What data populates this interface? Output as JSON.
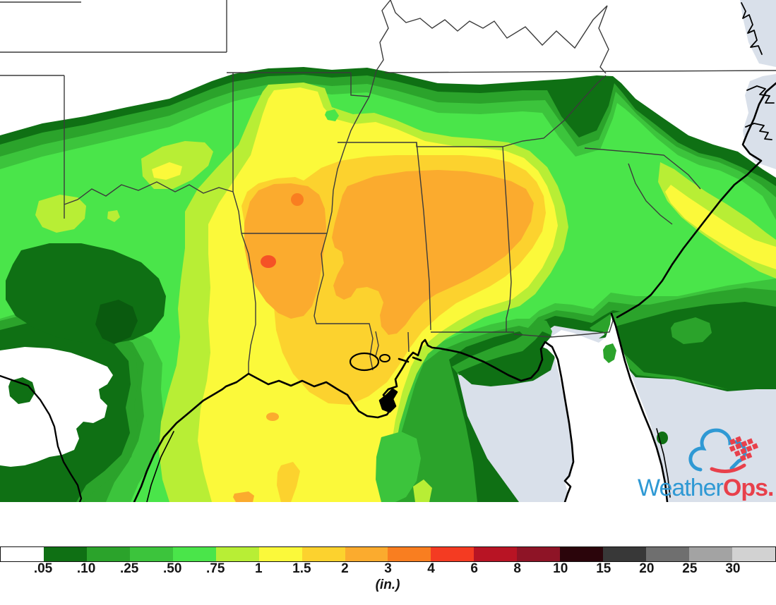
{
  "legend": {
    "tick_labels": [
      ".05",
      ".10",
      ".25",
      ".50",
      ".75",
      "1",
      "1.5",
      "2",
      "3",
      "4",
      "6",
      "8",
      "10",
      "15",
      "20",
      "25",
      "30"
    ],
    "tick_values_inches": [
      0.05,
      0.1,
      0.25,
      0.5,
      0.75,
      1,
      1.5,
      2,
      3,
      4,
      6,
      8,
      10,
      15,
      20,
      25,
      30
    ],
    "unit_label": "(in.)",
    "segment_colors": [
      "#ffffff",
      "#0f7014",
      "#2ba32b",
      "#3cc43c",
      "#4ae54a",
      "#b8ee35",
      "#fbf93a",
      "#fcd22e",
      "#fbab2e",
      "#f97e20",
      "#f43b22",
      "#b81424",
      "#8e1426",
      "#2b050b",
      "#383838",
      "#6f6f6f",
      "#a3a3a3",
      "#d2d2d2"
    ]
  },
  "logo": {
    "brand_blue_text": "Weather",
    "brand_red_text": "Ops",
    "period": ".",
    "blue": "#2f99d4",
    "red": "#e8404b"
  },
  "map": {
    "colors": {
      "land": "#ffffff",
      "water": "#d9e0ea",
      "state_border": "#3b3b3b",
      "coastline": "#000000",
      "darkest_core": "#0a5a0f",
      "hot_spot_inner": "#f55226",
      "hot_spot_outer": "#f97e20"
    }
  }
}
